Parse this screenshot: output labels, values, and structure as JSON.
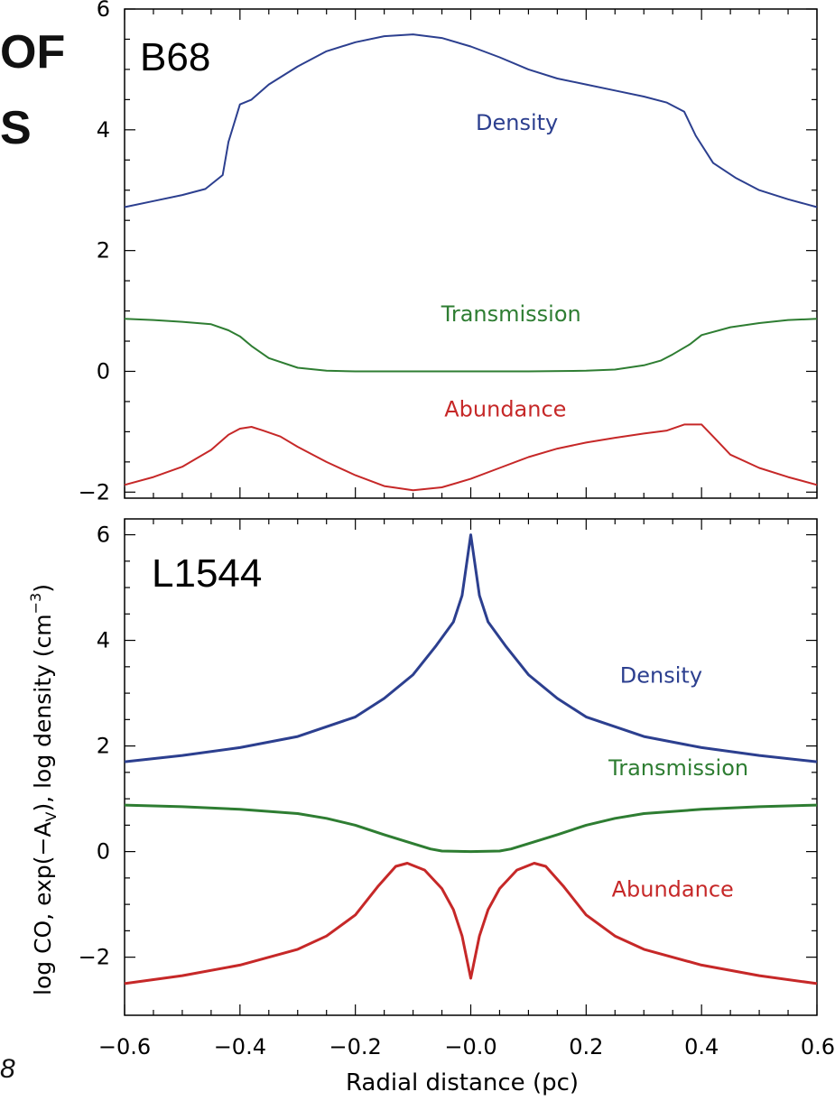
{
  "cropped_text": {
    "title_line1": "OF",
    "title_line2": "S",
    "footer": "8"
  },
  "colors": {
    "density": "#2c3f8f",
    "transmission": "#2e7d32",
    "abundance": "#c62828",
    "axis": "#000000"
  },
  "axes": {
    "x_label": "Radial distance (pc)",
    "y_label_parts": {
      "main": "log CO, exp(−A",
      "sub": "V",
      "mid": "), log density (cm",
      "sup": "−3",
      "end": ")"
    },
    "x_ticks": [
      "−0.6",
      "−0.4",
      "−0.2",
      "−0.0",
      "0.2",
      "0.4",
      "0.6"
    ],
    "y_ticks_top": [
      "6",
      "4",
      "2",
      "0",
      "−2"
    ],
    "y_ticks_bottom": [
      "6",
      "4",
      "2",
      "0",
      "−2"
    ]
  },
  "chart_data": [
    {
      "type": "line",
      "panel_label": "B68",
      "xlim": [
        -0.6,
        0.6
      ],
      "ylim": [
        -2.1,
        6.0
      ],
      "series": [
        {
          "name": "Density",
          "color": "#2c3f8f",
          "x": [
            -0.6,
            -0.55,
            -0.5,
            -0.46,
            -0.43,
            -0.42,
            -0.4,
            -0.38,
            -0.35,
            -0.3,
            -0.25,
            -0.2,
            -0.15,
            -0.1,
            -0.05,
            0.0,
            0.05,
            0.1,
            0.15,
            0.2,
            0.25,
            0.3,
            0.34,
            0.37,
            0.39,
            0.42,
            0.46,
            0.5,
            0.55,
            0.6
          ],
          "y": [
            2.72,
            2.82,
            2.92,
            3.02,
            3.25,
            3.8,
            4.42,
            4.5,
            4.75,
            5.05,
            5.3,
            5.45,
            5.55,
            5.58,
            5.52,
            5.38,
            5.2,
            5.0,
            4.85,
            4.75,
            4.65,
            4.55,
            4.45,
            4.3,
            3.9,
            3.45,
            3.2,
            3.0,
            2.85,
            2.72
          ]
        },
        {
          "name": "Transmission",
          "color": "#2e7d32",
          "x": [
            -0.6,
            -0.55,
            -0.5,
            -0.45,
            -0.42,
            -0.4,
            -0.38,
            -0.35,
            -0.3,
            -0.25,
            -0.2,
            -0.1,
            0.0,
            0.1,
            0.2,
            0.25,
            0.3,
            0.33,
            0.35,
            0.38,
            0.4,
            0.45,
            0.5,
            0.55,
            0.6
          ],
          "y": [
            0.87,
            0.85,
            0.82,
            0.78,
            0.68,
            0.58,
            0.42,
            0.22,
            0.06,
            0.01,
            0.0,
            0.0,
            0.0,
            0.0,
            0.01,
            0.03,
            0.1,
            0.18,
            0.28,
            0.45,
            0.6,
            0.73,
            0.8,
            0.85,
            0.87
          ]
        },
        {
          "name": "Abundance",
          "color": "#c62828",
          "x": [
            -0.6,
            -0.55,
            -0.5,
            -0.45,
            -0.42,
            -0.4,
            -0.38,
            -0.36,
            -0.33,
            -0.3,
            -0.25,
            -0.2,
            -0.15,
            -0.1,
            -0.05,
            0.0,
            0.05,
            0.1,
            0.15,
            0.2,
            0.25,
            0.3,
            0.34,
            0.37,
            0.4,
            0.42,
            0.45,
            0.5,
            0.55,
            0.6
          ],
          "y": [
            -1.88,
            -1.75,
            -1.58,
            -1.3,
            -1.05,
            -0.95,
            -0.92,
            -0.98,
            -1.08,
            -1.25,
            -1.5,
            -1.72,
            -1.9,
            -1.97,
            -1.92,
            -1.78,
            -1.6,
            -1.42,
            -1.28,
            -1.18,
            -1.1,
            -1.03,
            -0.98,
            -0.88,
            -0.88,
            -1.08,
            -1.38,
            -1.6,
            -1.75,
            -1.88
          ]
        }
      ],
      "annotations": [
        {
          "text": "Density",
          "x": 0.08,
          "y": 4.0,
          "color": "#2c3f8f"
        },
        {
          "text": "Transmission",
          "x": 0.07,
          "y": 0.83,
          "color": "#2e7d32"
        },
        {
          "text": "Abundance",
          "x": 0.06,
          "y": -0.75,
          "color": "#c62828"
        }
      ]
    },
    {
      "type": "line",
      "panel_label": "L1544",
      "xlim": [
        -0.6,
        0.6
      ],
      "ylim": [
        -3.1,
        6.3
      ],
      "series": [
        {
          "name": "Density",
          "color": "#2c3f8f",
          "x": [
            -0.6,
            -0.5,
            -0.4,
            -0.3,
            -0.2,
            -0.15,
            -0.1,
            -0.06,
            -0.03,
            -0.015,
            0.0,
            0.015,
            0.03,
            0.06,
            0.1,
            0.15,
            0.2,
            0.3,
            0.4,
            0.5,
            0.6
          ],
          "y": [
            1.7,
            1.82,
            1.97,
            2.18,
            2.55,
            2.9,
            3.35,
            3.9,
            4.35,
            4.85,
            6.0,
            4.85,
            4.35,
            3.9,
            3.35,
            2.9,
            2.55,
            2.18,
            1.97,
            1.82,
            1.7
          ]
        },
        {
          "name": "Transmission",
          "color": "#2e7d32",
          "x": [
            -0.6,
            -0.5,
            -0.4,
            -0.3,
            -0.25,
            -0.2,
            -0.15,
            -0.1,
            -0.07,
            -0.05,
            0.0,
            0.05,
            0.07,
            0.1,
            0.15,
            0.2,
            0.25,
            0.3,
            0.4,
            0.5,
            0.6
          ],
          "y": [
            0.88,
            0.85,
            0.8,
            0.72,
            0.63,
            0.5,
            0.32,
            0.15,
            0.05,
            0.01,
            0.0,
            0.01,
            0.05,
            0.15,
            0.32,
            0.5,
            0.63,
            0.72,
            0.8,
            0.85,
            0.88
          ]
        },
        {
          "name": "Abundance",
          "color": "#c62828",
          "x": [
            -0.6,
            -0.5,
            -0.4,
            -0.3,
            -0.25,
            -0.2,
            -0.16,
            -0.13,
            -0.11,
            -0.08,
            -0.05,
            -0.03,
            -0.015,
            0.0,
            0.015,
            0.03,
            0.05,
            0.08,
            0.11,
            0.13,
            0.16,
            0.2,
            0.25,
            0.3,
            0.4,
            0.5,
            0.6
          ],
          "y": [
            -2.5,
            -2.35,
            -2.15,
            -1.85,
            -1.6,
            -1.2,
            -0.65,
            -0.28,
            -0.22,
            -0.35,
            -0.7,
            -1.1,
            -1.6,
            -2.4,
            -1.6,
            -1.1,
            -0.7,
            -0.35,
            -0.22,
            -0.28,
            -0.65,
            -1.2,
            -1.6,
            -1.85,
            -2.15,
            -2.35,
            -2.5
          ]
        }
      ],
      "annotations": [
        {
          "text": "Density",
          "x": 0.33,
          "y": 3.2,
          "color": "#2c3f8f"
        },
        {
          "text": "Transmission",
          "x": 0.36,
          "y": 1.45,
          "color": "#2e7d32"
        },
        {
          "text": "Abundance",
          "x": 0.35,
          "y": -0.85,
          "color": "#c62828"
        }
      ]
    }
  ]
}
